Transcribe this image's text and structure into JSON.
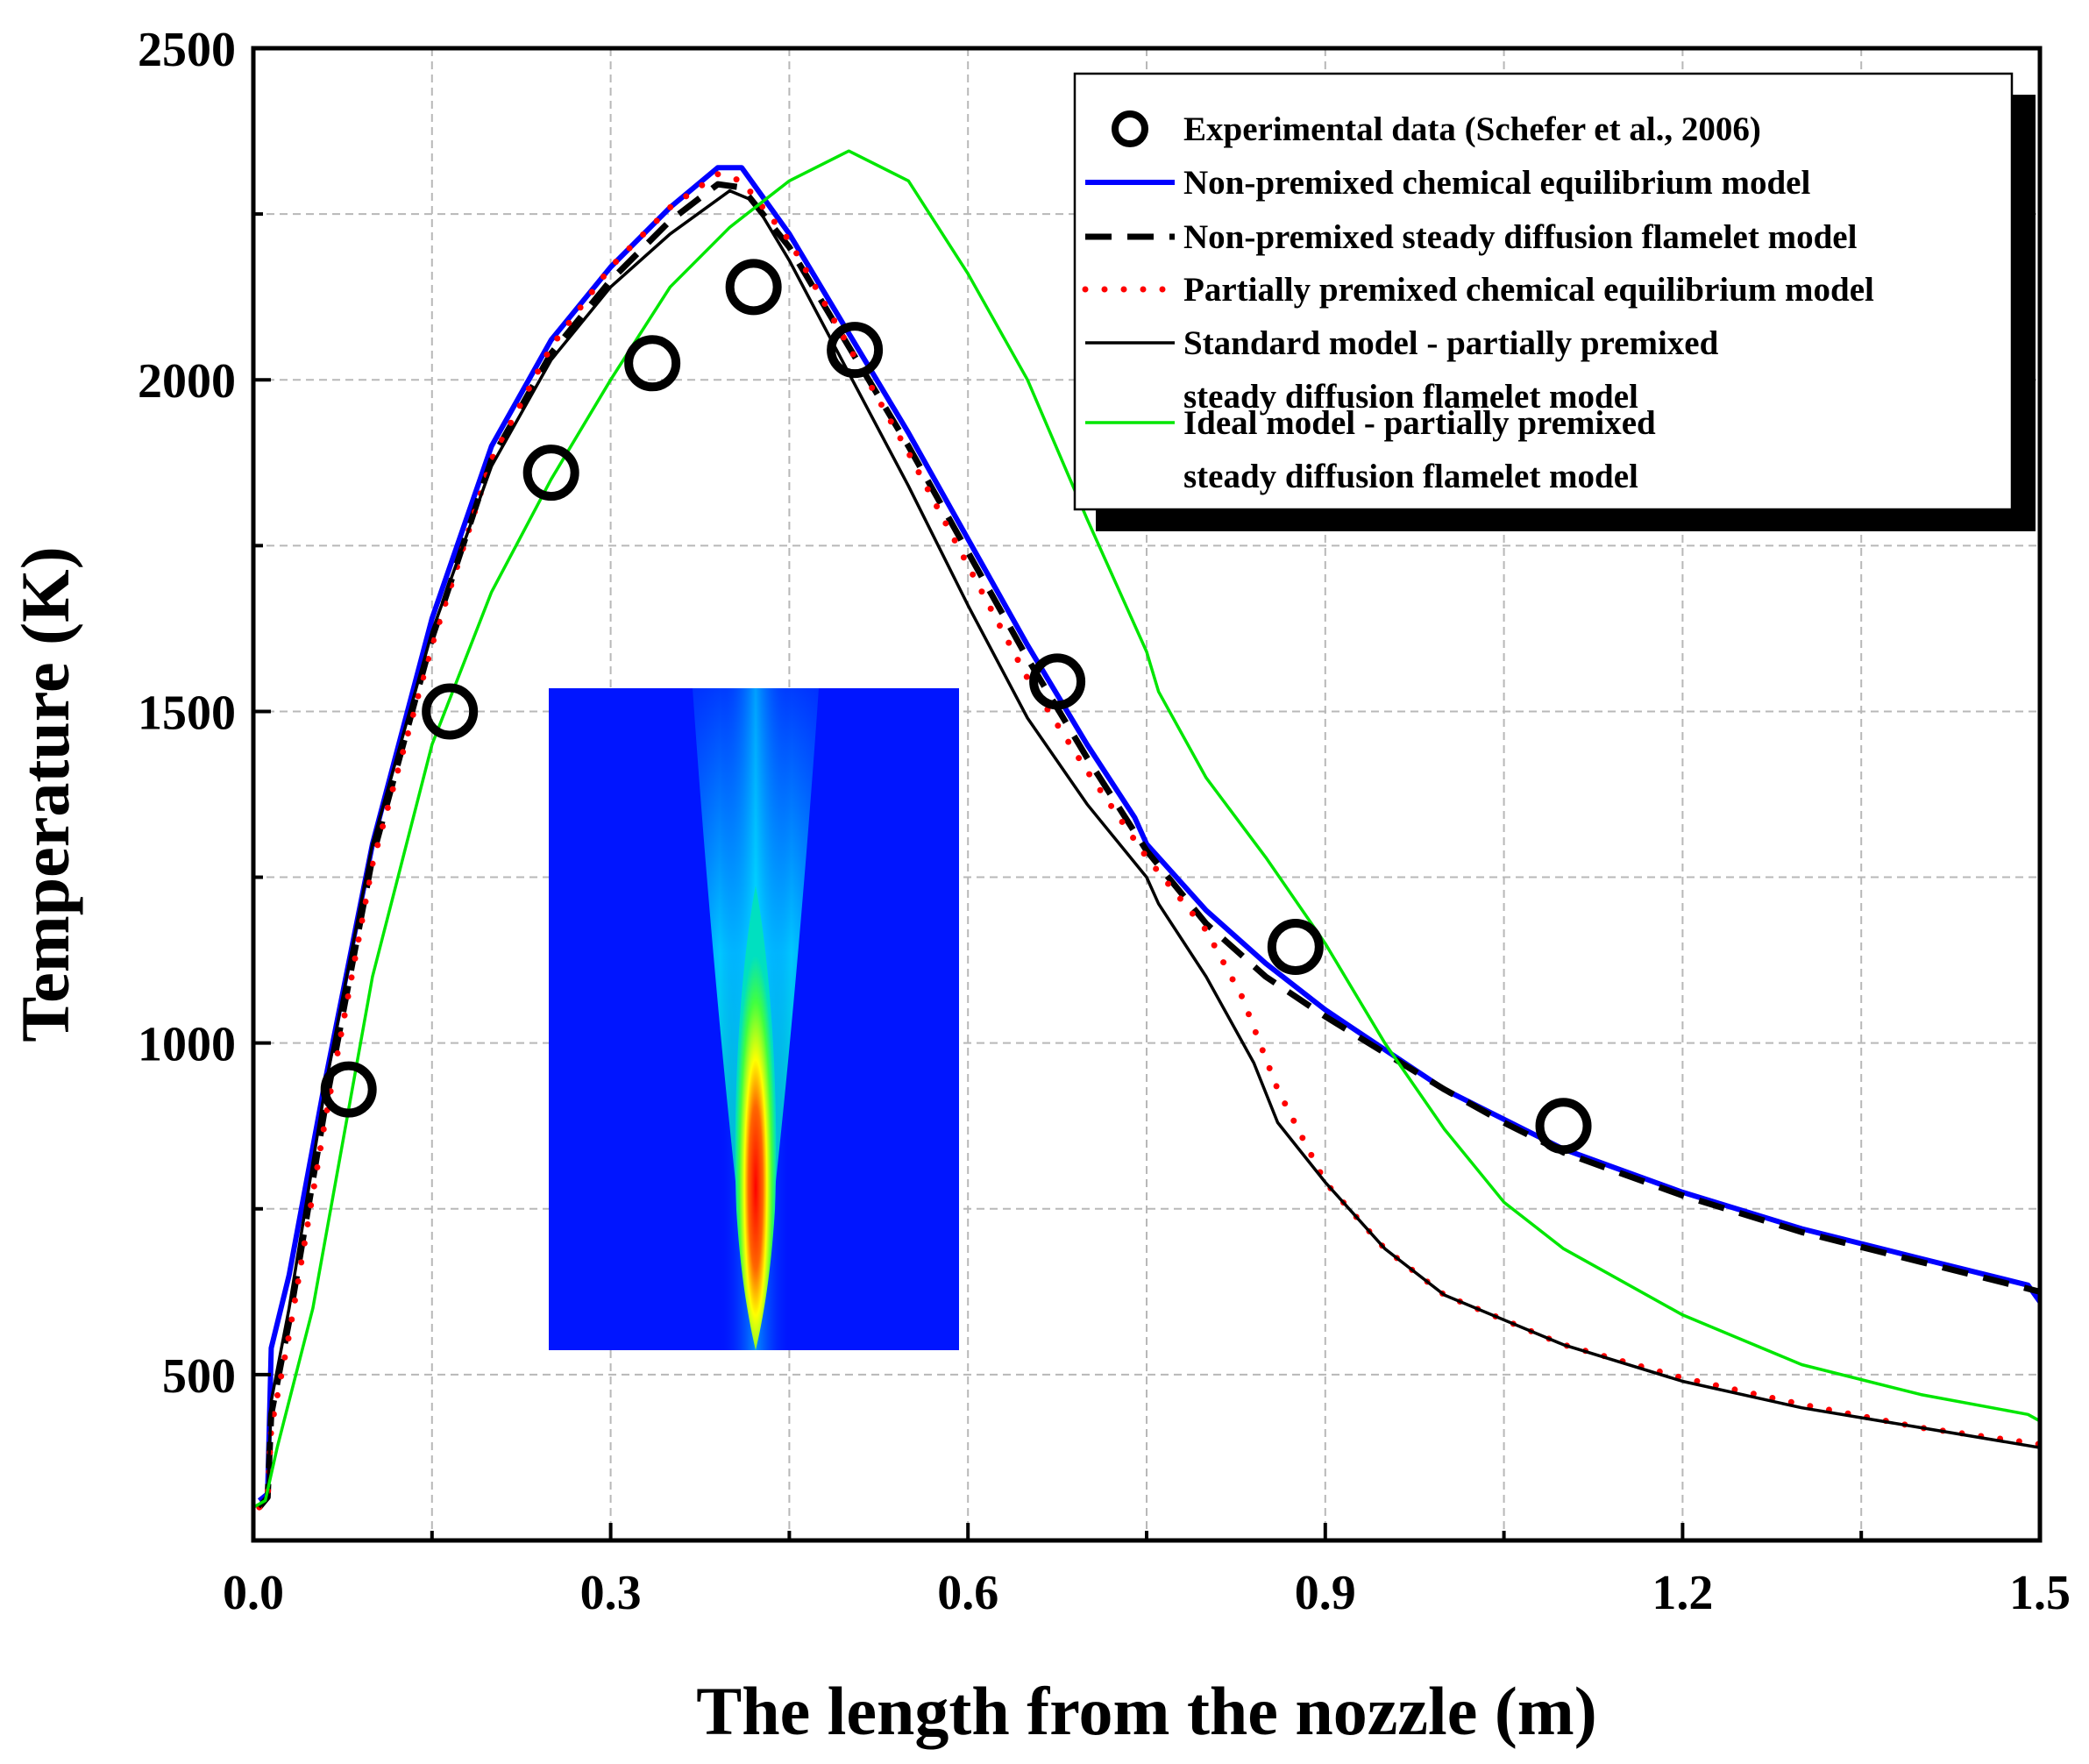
{
  "chart_data": {
    "type": "line",
    "title": "",
    "xlabel": "The length from the nozzle (m)",
    "ylabel": "Temperature (K)",
    "xlim": [
      0,
      1.5
    ],
    "ylim": [
      250,
      2500
    ],
    "xticks": [
      0.0,
      0.3,
      0.6,
      0.9,
      1.2,
      1.5
    ],
    "xtick_labels": [
      "0.0",
      "0.3",
      "0.6",
      "0.9",
      "1.2",
      "1.5"
    ],
    "xminor": [
      0.15,
      0.45,
      0.75,
      1.05,
      1.35
    ],
    "yticks": [
      500,
      1000,
      1500,
      2000,
      2500
    ],
    "ytick_labels": [
      "500",
      "1000",
      "1500",
      "2000",
      "2500"
    ],
    "yminor": [
      750,
      1250,
      1750,
      2250
    ],
    "grid": true,
    "legend_position": "top-right",
    "legend": [
      {
        "label": "Experimental data (Schefer et al., 2006)"
      },
      {
        "label": "Non-premixed chemical equilibrium model"
      },
      {
        "label": "Non-premixed steady diffusion flamelet model"
      },
      {
        "label": "Partially premixed chemical equilibrium model"
      },
      {
        "label": "Standard model - partially premixed",
        "label2": "steady diffusion flamelet model"
      },
      {
        "label": "Ideal model - partially premixed",
        "label2": "steady diffusion flamelet model"
      }
    ],
    "series": [
      {
        "name": "Experimental data (Schefer et al., 2006)",
        "style": "marker",
        "color": "#000000",
        "x": [
          0.08,
          0.165,
          0.25,
          0.335,
          0.42,
          0.505,
          0.675,
          0.875,
          1.1
        ],
        "y": [
          930,
          1500,
          1860,
          2025,
          2140,
          2045,
          1545,
          1145,
          875
        ]
      },
      {
        "name": "Non-premixed chemical equilibrium model",
        "style": "solid",
        "color": "#0000ff",
        "x": [
          0.005,
          0.012,
          0.015,
          0.03,
          0.06,
          0.1,
          0.15,
          0.2,
          0.25,
          0.3,
          0.35,
          0.39,
          0.41,
          0.45,
          0.5,
          0.55,
          0.6,
          0.65,
          0.7,
          0.74,
          0.75,
          0.8,
          0.85,
          0.9,
          0.95,
          1.0,
          1.05,
          1.1,
          1.2,
          1.3,
          1.4,
          1.49,
          1.5
        ],
        "y": [
          310,
          320,
          540,
          650,
          940,
          1300,
          1640,
          1900,
          2060,
          2170,
          2260,
          2320,
          2320,
          2220,
          2070,
          1920,
          1760,
          1600,
          1450,
          1340,
          1300,
          1200,
          1120,
          1050,
          990,
          930,
          885,
          840,
          775,
          720,
          675,
          635,
          610
        ]
      },
      {
        "name": "Non-premixed steady diffusion flamelet model",
        "style": "dashed",
        "color": "#000000",
        "x": [
          0.005,
          0.012,
          0.015,
          0.03,
          0.06,
          0.1,
          0.15,
          0.2,
          0.25,
          0.3,
          0.35,
          0.39,
          0.41,
          0.45,
          0.5,
          0.55,
          0.6,
          0.65,
          0.7,
          0.75,
          0.8,
          0.85,
          0.9,
          0.95,
          1.0,
          1.05,
          1.1,
          1.2,
          1.3,
          1.4,
          1.5
        ],
        "y": [
          300,
          315,
          440,
          580,
          900,
          1280,
          1610,
          1880,
          2040,
          2150,
          2240,
          2295,
          2290,
          2200,
          2050,
          1900,
          1740,
          1580,
          1430,
          1290,
          1180,
          1100,
          1040,
          985,
          930,
          880,
          835,
          770,
          715,
          670,
          625
        ]
      },
      {
        "name": "Partially premixed chemical equilibrium model",
        "style": "dotted",
        "color": "#ff0000",
        "x": [
          0.005,
          0.012,
          0.015,
          0.03,
          0.06,
          0.1,
          0.15,
          0.2,
          0.25,
          0.3,
          0.35,
          0.39,
          0.41,
          0.45,
          0.5,
          0.55,
          0.6,
          0.65,
          0.7,
          0.75,
          0.8,
          0.83,
          0.86,
          0.9,
          0.95,
          1.0,
          1.1,
          1.2,
          1.3,
          1.4,
          1.5
        ],
        "y": [
          300,
          315,
          420,
          560,
          880,
          1270,
          1600,
          1880,
          2050,
          2170,
          2260,
          2310,
          2300,
          2210,
          2050,
          1890,
          1720,
          1550,
          1410,
          1280,
          1170,
          1070,
          930,
          790,
          690,
          620,
          545,
          495,
          455,
          420,
          395
        ]
      },
      {
        "name": "Standard model - partially premixed steady diffusion flamelet model",
        "style": "solid-thin",
        "color": "#000000",
        "x": [
          0.005,
          0.012,
          0.015,
          0.03,
          0.06,
          0.1,
          0.15,
          0.2,
          0.25,
          0.3,
          0.35,
          0.4,
          0.42,
          0.45,
          0.5,
          0.55,
          0.6,
          0.65,
          0.7,
          0.75,
          0.76,
          0.8,
          0.84,
          0.86,
          0.9,
          0.95,
          1.0,
          1.1,
          1.2,
          1.3,
          1.4,
          1.5
        ],
        "y": [
          300,
          315,
          460,
          600,
          930,
          1300,
          1620,
          1870,
          2030,
          2140,
          2220,
          2285,
          2270,
          2180,
          2010,
          1840,
          1660,
          1490,
          1360,
          1250,
          1210,
          1100,
          970,
          880,
          790,
          690,
          620,
          545,
          490,
          450,
          420,
          390
        ]
      },
      {
        "name": "Ideal model - partially premixed steady diffusion flamelet model",
        "style": "solid-thin",
        "color": "#00e600",
        "x": [
          0.0,
          0.01,
          0.02,
          0.05,
          0.1,
          0.15,
          0.2,
          0.25,
          0.3,
          0.35,
          0.4,
          0.45,
          0.5,
          0.55,
          0.6,
          0.65,
          0.7,
          0.75,
          0.76,
          0.8,
          0.85,
          0.9,
          0.95,
          1.0,
          1.05,
          1.1,
          1.2,
          1.3,
          1.4,
          1.49,
          1.5
        ],
        "y": [
          300,
          310,
          390,
          600,
          1100,
          1450,
          1680,
          1850,
          2000,
          2140,
          2230,
          2300,
          2345,
          2300,
          2160,
          2000,
          1790,
          1590,
          1530,
          1400,
          1280,
          1150,
          1000,
          870,
          760,
          690,
          590,
          515,
          470,
          440,
          430
        ]
      }
    ],
    "inset_label": ""
  }
}
